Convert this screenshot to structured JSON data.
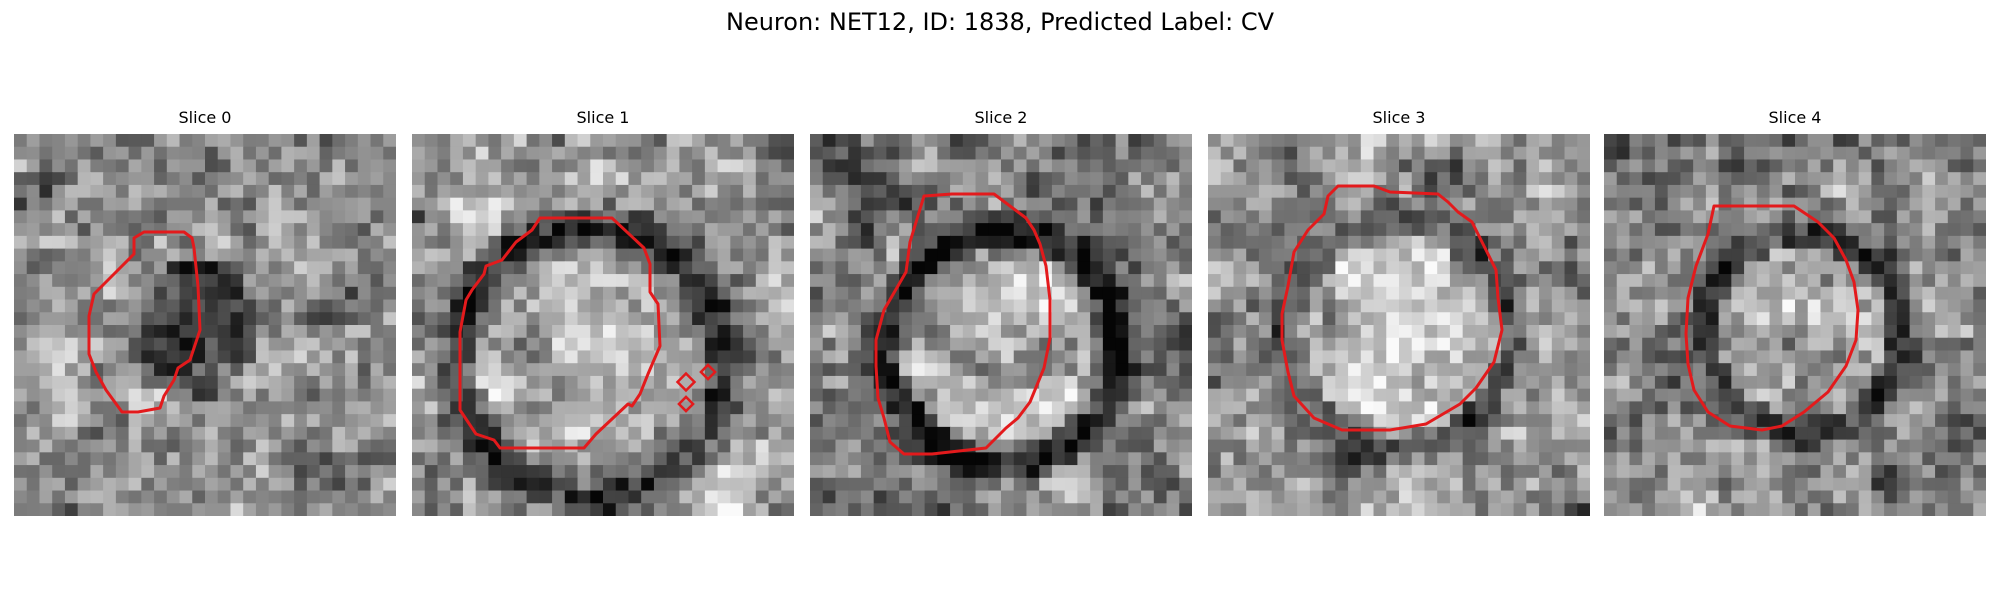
{
  "figure": {
    "title": "Neuron: NET12, ID: 1838, Predicted Label: CV"
  },
  "panels": [
    {
      "title": "Slice 0"
    },
    {
      "title": "Slice 1"
    },
    {
      "title": "Slice 2"
    },
    {
      "title": "Slice 3"
    },
    {
      "title": "Slice 4"
    }
  ],
  "colors": {
    "contour": "#e31a1c",
    "background": "#ffffff"
  }
}
